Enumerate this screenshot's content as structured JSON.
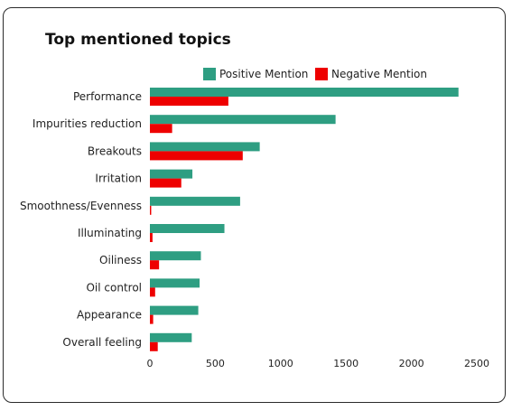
{
  "chart_data": {
    "type": "bar",
    "orientation": "horizontal",
    "title": "Top mentioned topics",
    "categories": [
      "Performance",
      "Impurities reduction",
      "Breakouts",
      "Irritation",
      "Smoothness/Evenness",
      "Illuminating",
      "Oiliness",
      "Oil control",
      "Appearance",
      "Overall feeling"
    ],
    "series": [
      {
        "name": "Positive Mention",
        "color": "#2e9e82",
        "values": [
          2360,
          1420,
          840,
          325,
          690,
          570,
          390,
          380,
          370,
          320
        ]
      },
      {
        "name": "Negative Mention",
        "color": "#ee0000",
        "values": [
          600,
          170,
          710,
          240,
          10,
          20,
          70,
          40,
          25,
          60
        ]
      }
    ],
    "xlim": [
      0,
      2500
    ],
    "xticks": [
      0,
      500,
      1000,
      1500,
      2000,
      2500
    ],
    "legend_position": "top",
    "grid": false
  }
}
